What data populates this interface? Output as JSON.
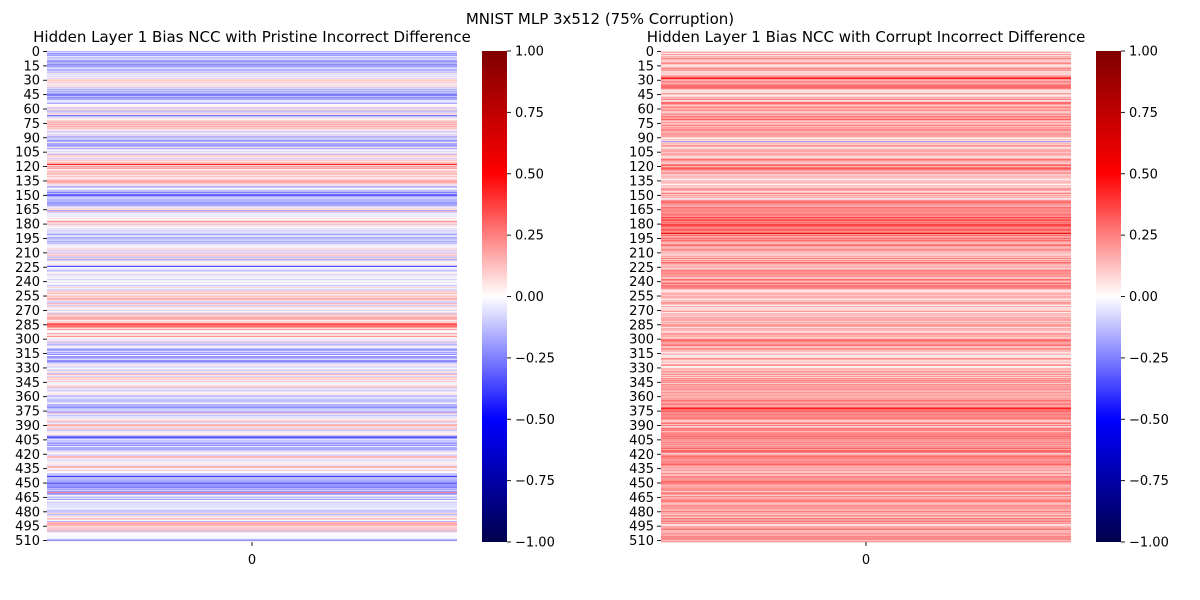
{
  "suptitle": "MNIST MLP 3x512 (75% Corruption)",
  "chart_data": [
    {
      "type": "heatmap",
      "title": "Hidden Layer 1 Bias NCC with Pristine Incorrect Difference",
      "xlabel": "",
      "ylabel": "",
      "x_ticks": [
        "0"
      ],
      "y_ticks": [
        "0",
        "15",
        "30",
        "45",
        "60",
        "75",
        "90",
        "105",
        "120",
        "135",
        "150",
        "165",
        "180",
        "195",
        "210",
        "225",
        "240",
        "255",
        "270",
        "285",
        "300",
        "315",
        "330",
        "345",
        "360",
        "375",
        "390",
        "405",
        "420",
        "435",
        "450",
        "465",
        "480",
        "495",
        "510"
      ],
      "rows": 512,
      "cols": 1,
      "colormap": "seismic",
      "vmin": -1.0,
      "vmax": 1.0,
      "colorbar_ticks": [
        "1.00",
        "0.75",
        "0.50",
        "0.25",
        "0.00",
        "−0.25",
        "−0.50",
        "−0.75",
        "−1.00"
      ],
      "band_profile": [
        {
          "row": 0,
          "value": -0.08
        },
        {
          "row": 10,
          "value": -0.15
        },
        {
          "row": 20,
          "value": -0.1
        },
        {
          "row": 30,
          "value": 0.05
        },
        {
          "row": 45,
          "value": -0.18
        },
        {
          "row": 60,
          "value": -0.05
        },
        {
          "row": 75,
          "value": 0.12
        },
        {
          "row": 90,
          "value": -0.1
        },
        {
          "row": 105,
          "value": -0.05
        },
        {
          "row": 120,
          "value": 0.1
        },
        {
          "row": 135,
          "value": 0.08
        },
        {
          "row": 150,
          "value": -0.25
        },
        {
          "row": 165,
          "value": 0.02
        },
        {
          "row": 180,
          "value": 0.03
        },
        {
          "row": 195,
          "value": -0.1
        },
        {
          "row": 210,
          "value": 0.05
        },
        {
          "row": 225,
          "value": -0.12
        },
        {
          "row": 240,
          "value": -0.05
        },
        {
          "row": 255,
          "value": 0.12
        },
        {
          "row": 270,
          "value": -0.05
        },
        {
          "row": 285,
          "value": 0.25
        },
        {
          "row": 300,
          "value": -0.05
        },
        {
          "row": 315,
          "value": -0.1
        },
        {
          "row": 330,
          "value": -0.05
        },
        {
          "row": 345,
          "value": 0.08
        },
        {
          "row": 360,
          "value": -0.05
        },
        {
          "row": 375,
          "value": -0.15
        },
        {
          "row": 390,
          "value": 0.05
        },
        {
          "row": 405,
          "value": -0.1
        },
        {
          "row": 420,
          "value": -0.05
        },
        {
          "row": 435,
          "value": 0.08
        },
        {
          "row": 450,
          "value": -0.2
        },
        {
          "row": 465,
          "value": -0.1
        },
        {
          "row": 480,
          "value": -0.05
        },
        {
          "row": 495,
          "value": 0.1
        },
        {
          "row": 511,
          "value": -0.1
        }
      ],
      "band_noise": 0.14,
      "seed": 7
    },
    {
      "type": "heatmap",
      "title": "Hidden Layer 1 Bias NCC with Corrupt Incorrect Difference",
      "xlabel": "",
      "ylabel": "",
      "x_ticks": [
        "0"
      ],
      "y_ticks": [
        "0",
        "15",
        "30",
        "45",
        "60",
        "75",
        "90",
        "105",
        "120",
        "135",
        "150",
        "165",
        "180",
        "195",
        "210",
        "225",
        "240",
        "255",
        "270",
        "285",
        "300",
        "315",
        "330",
        "345",
        "360",
        "375",
        "390",
        "405",
        "420",
        "435",
        "450",
        "465",
        "480",
        "495",
        "510"
      ],
      "rows": 512,
      "cols": 1,
      "colormap": "seismic",
      "vmin": -1.0,
      "vmax": 1.0,
      "colorbar_ticks": [
        "1.00",
        "0.75",
        "0.50",
        "0.25",
        "0.00",
        "−0.25",
        "−0.50",
        "−0.75",
        "−1.00"
      ],
      "band_profile": [
        {
          "row": 0,
          "value": 0.12
        },
        {
          "row": 15,
          "value": 0.15
        },
        {
          "row": 30,
          "value": 0.2
        },
        {
          "row": 45,
          "value": 0.15
        },
        {
          "row": 60,
          "value": 0.18
        },
        {
          "row": 75,
          "value": 0.22
        },
        {
          "row": 90,
          "value": 0.1
        },
        {
          "row": 105,
          "value": 0.12
        },
        {
          "row": 120,
          "value": 0.25
        },
        {
          "row": 135,
          "value": 0.12
        },
        {
          "row": 150,
          "value": 0.15
        },
        {
          "row": 165,
          "value": 0.25
        },
        {
          "row": 180,
          "value": 0.28
        },
        {
          "row": 195,
          "value": 0.2
        },
        {
          "row": 210,
          "value": 0.18
        },
        {
          "row": 225,
          "value": 0.2
        },
        {
          "row": 240,
          "value": 0.22
        },
        {
          "row": 255,
          "value": 0.1
        },
        {
          "row": 270,
          "value": 0.12
        },
        {
          "row": 285,
          "value": 0.15
        },
        {
          "row": 300,
          "value": 0.2
        },
        {
          "row": 315,
          "value": 0.15
        },
        {
          "row": 330,
          "value": 0.12
        },
        {
          "row": 345,
          "value": 0.15
        },
        {
          "row": 360,
          "value": 0.15
        },
        {
          "row": 375,
          "value": 0.25
        },
        {
          "row": 390,
          "value": 0.18
        },
        {
          "row": 405,
          "value": 0.22
        },
        {
          "row": 420,
          "value": 0.2
        },
        {
          "row": 435,
          "value": 0.22
        },
        {
          "row": 450,
          "value": 0.18
        },
        {
          "row": 465,
          "value": 0.15
        },
        {
          "row": 480,
          "value": 0.2
        },
        {
          "row": 495,
          "value": 0.15
        },
        {
          "row": 511,
          "value": 0.2
        }
      ],
      "band_noise": 0.12,
      "seed": 13
    }
  ]
}
